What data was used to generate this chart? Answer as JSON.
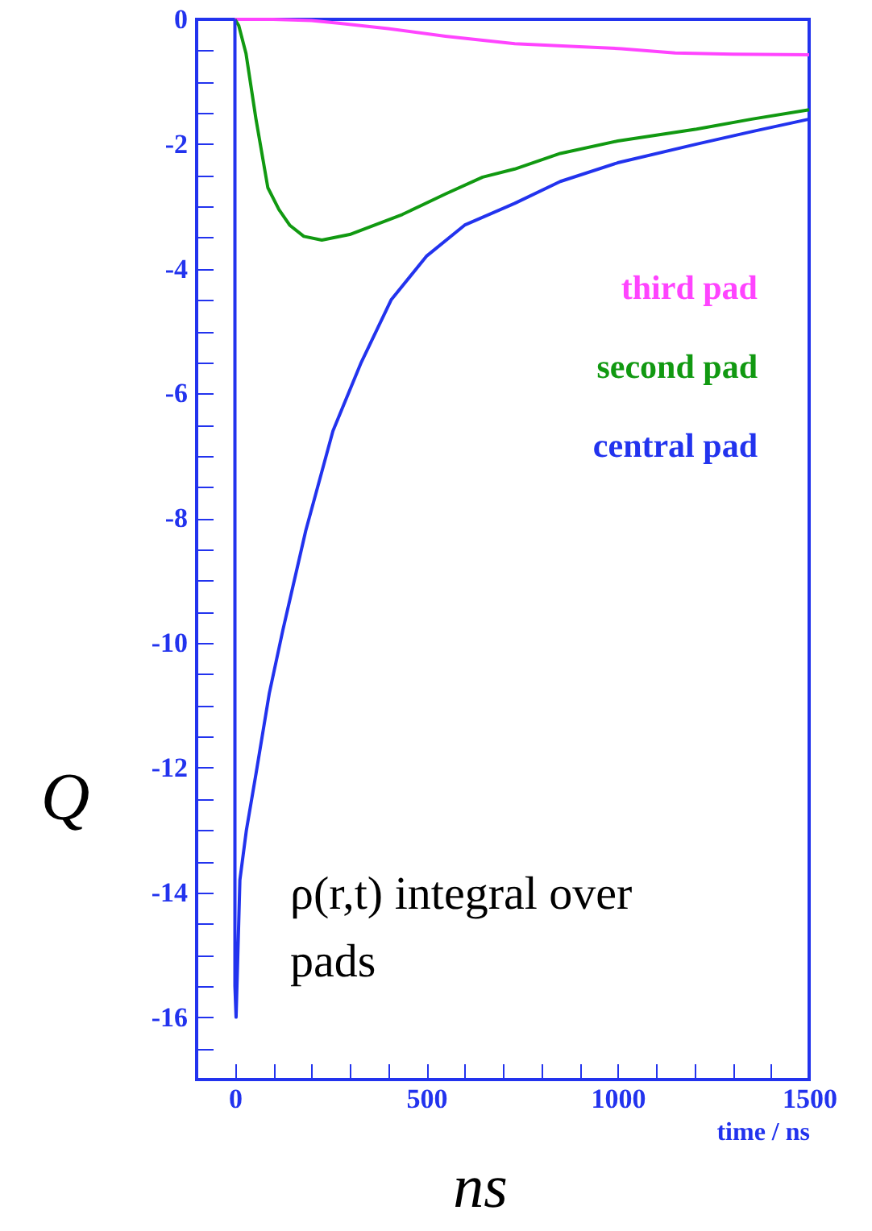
{
  "chart_data": {
    "type": "line",
    "xlabel": "time / ns",
    "ylabel": "Q",
    "xlim": [
      -100,
      1500
    ],
    "ylim": [
      -17,
      0
    ],
    "xticks": [
      {
        "value": -100,
        "label": null
      },
      0,
      {
        "value": 100,
        "label": null
      },
      {
        "value": 200,
        "label": null
      },
      {
        "value": 300,
        "label": null
      },
      {
        "value": 400,
        "label": null
      },
      500,
      {
        "value": 600,
        "label": null
      },
      {
        "value": 700,
        "label": null
      },
      {
        "value": 800,
        "label": null
      },
      {
        "value": 900,
        "label": null
      },
      1000,
      {
        "value": 1100,
        "label": null
      },
      {
        "value": 1200,
        "label": null
      },
      {
        "value": 1300,
        "label": null
      },
      {
        "value": 1400,
        "label": null
      },
      1500
    ],
    "yticks": [
      0,
      {
        "value": -0.5,
        "label": null
      },
      {
        "value": -1,
        "label": null
      },
      {
        "value": -1.5,
        "label": null
      },
      -2,
      {
        "value": -2.5,
        "label": null
      },
      {
        "value": -3,
        "label": null
      },
      {
        "value": -3.5,
        "label": null
      },
      -4,
      {
        "value": -4.5,
        "label": null
      },
      {
        "value": -5,
        "label": null
      },
      {
        "value": -5.5,
        "label": null
      },
      -6,
      {
        "value": -6.5,
        "label": null
      },
      {
        "value": -7,
        "label": null
      },
      {
        "value": -7.5,
        "label": null
      },
      -8,
      {
        "value": -8.5,
        "label": null
      },
      {
        "value": -9,
        "label": null
      },
      {
        "value": -9.5,
        "label": null
      },
      -10,
      {
        "value": -10.5,
        "label": null
      },
      {
        "value": -11,
        "label": null
      },
      {
        "value": -11.5,
        "label": null
      },
      -12,
      {
        "value": -12.5,
        "label": null
      },
      {
        "value": -13,
        "label": null
      },
      {
        "value": -13.5,
        "label": null
      },
      -14,
      {
        "value": -14.5,
        "label": null
      },
      {
        "value": -15,
        "label": null
      },
      {
        "value": -15.5,
        "label": null
      },
      -16,
      {
        "value": -16.5,
        "label": null
      }
    ],
    "legend": "top right",
    "grid": false,
    "series": [
      {
        "name": "third pad",
        "color": "#ff44ff",
        "x": [
          0,
          100,
          200,
          270,
          400,
          550,
          731,
          900,
          1010,
          1150,
          1300,
          1500
        ],
        "values": [
          0,
          0,
          -0.02,
          -0.06,
          -0.15,
          -0.27,
          -0.39,
          -0.44,
          -0.47,
          -0.54,
          -0.56,
          -0.57
        ]
      },
      {
        "name": "second pad",
        "color": "#119911",
        "x": [
          0,
          10,
          29,
          55,
          86,
          115,
          143,
          180,
          227,
          300,
          437,
          550,
          647,
          731,
          850,
          1000,
          1206,
          1350,
          1500
        ],
        "values": [
          0,
          -0.1,
          -0.55,
          -1.6,
          -2.7,
          -3.05,
          -3.3,
          -3.48,
          -3.54,
          -3.45,
          -3.13,
          -2.8,
          -2.53,
          -2.4,
          -2.15,
          -1.95,
          -1.76,
          -1.6,
          -1.45
        ]
      },
      {
        "name": "central pad",
        "color": "#2233ee",
        "x": [
          0,
          0,
          3,
          13,
          30,
          55,
          90,
          125,
          185,
          256,
          330,
          408,
          500,
          600,
          731,
          850,
          1000,
          1206,
          1350,
          1500
        ],
        "values": [
          0,
          -15.5,
          -16,
          -13.8,
          -13,
          -12.1,
          -10.8,
          -9.8,
          -8.2,
          -6.6,
          -5.5,
          -4.5,
          -3.8,
          -3.3,
          -2.95,
          -2.6,
          -2.3,
          -2.0,
          -1.8,
          -1.6
        ]
      }
    ],
    "annotations": [
      "ρ(r,t) integral over\npads",
      "ns"
    ]
  }
}
